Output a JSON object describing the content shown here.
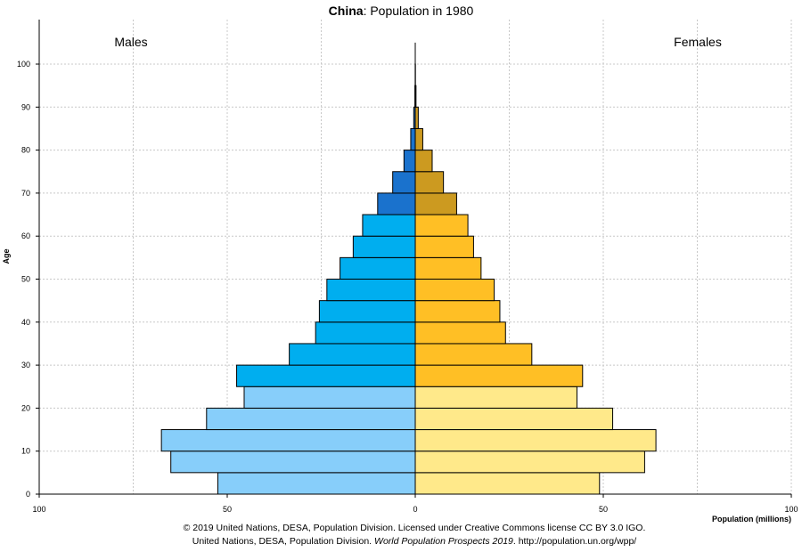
{
  "title": {
    "bold": "China",
    "rest": ": Population in 1980"
  },
  "credits": {
    "line1": "© 2019 United Nations, DESA, Population Division. Licensed under Creative Commons license CC BY 3.0 IGO.",
    "line2_pre": "United Nations, DESA, Population Division. ",
    "line2_italic": "World Population Prospects 2019",
    "line2_post": ". http://population.un.org/wpp/"
  },
  "chart_data": {
    "type": "bar",
    "orientation": "horizontal-population-pyramid",
    "title": "China: Population in 1980",
    "ylabel": "Age",
    "xlabel": "Population (millions)",
    "side_labels": {
      "left": "Males",
      "right": "Females"
    },
    "xlim": [
      -100,
      100
    ],
    "xticks": [
      -100,
      -50,
      0,
      50,
      100
    ],
    "xtick_labels": [
      "100",
      "50",
      "0",
      "50",
      "100"
    ],
    "ylim": [
      0,
      105
    ],
    "yticks": [
      0,
      10,
      20,
      30,
      40,
      50,
      60,
      70,
      80,
      90,
      100
    ],
    "grid": true,
    "categories": [
      "0-4",
      "5-9",
      "10-14",
      "15-19",
      "20-24",
      "25-29",
      "30-34",
      "35-39",
      "40-44",
      "45-49",
      "50-54",
      "55-59",
      "60-64",
      "65-69",
      "70-74",
      "75-79",
      "80-84",
      "85-89",
      "90-94",
      "95-99",
      "100+"
    ],
    "series": [
      {
        "name": "Males",
        "values": [
          52.5,
          65.0,
          67.5,
          55.5,
          45.5,
          47.5,
          33.5,
          26.5,
          25.5,
          23.5,
          20.0,
          16.5,
          14.0,
          10.0,
          6.0,
          3.0,
          1.2,
          0.4,
          0.1,
          0.02,
          0.0
        ],
        "colors": [
          "#87cefa",
          "#87cefa",
          "#87cefa",
          "#87cefa",
          "#87cefa",
          "#00aeef",
          "#00aeef",
          "#00aeef",
          "#00aeef",
          "#00aeef",
          "#00aeef",
          "#00aeef",
          "#00aeef",
          "#1a72cd",
          "#1a72cd",
          "#1a72cd",
          "#1a72cd",
          "#1a72cd",
          "#1a72cd",
          "#1a72cd",
          "#1a72cd"
        ]
      },
      {
        "name": "Females",
        "values": [
          49.0,
          61.0,
          64.0,
          52.5,
          43.0,
          44.5,
          31.0,
          24.0,
          22.5,
          21.0,
          17.5,
          15.5,
          14.0,
          11.0,
          7.5,
          4.5,
          2.0,
          0.8,
          0.2,
          0.05,
          0.0
        ],
        "colors": [
          "#ffe98a",
          "#ffe98a",
          "#ffe98a",
          "#ffe98a",
          "#ffe98a",
          "#ffbf25",
          "#ffbf25",
          "#ffbf25",
          "#ffbf25",
          "#ffbf25",
          "#ffbf25",
          "#ffbf25",
          "#ffbf25",
          "#cc9a20",
          "#cc9a20",
          "#cc9a20",
          "#cc9a20",
          "#cc9a20",
          "#cc9a20",
          "#cc9a20",
          "#cc9a20"
        ]
      }
    ]
  }
}
